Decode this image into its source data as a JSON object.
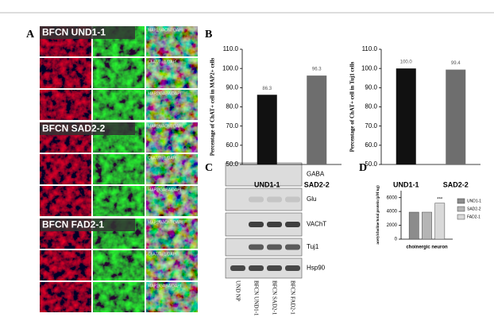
{
  "panel_a": {
    "label": "A",
    "groups": [
      {
        "title": "BFCN UND1-1",
        "stains": [
          "MAP2/VAChT/DAPI",
          "ChAT/Tuj1/DAPI",
          "MAP2/GABA/DAPI"
        ]
      },
      {
        "title": "BFCN SAD2-2",
        "stains": [
          "MAP2/VAChT/DAPI",
          "ChAT/Tuj1/DAPI",
          "MAP2/GABA/DAPI"
        ]
      },
      {
        "title": "BFCN FAD2-1",
        "stains": [
          "MAP2/VAChT/DAPI",
          "ChAT/Tuj1/DAPI",
          "MAP2/GABA/DAPI"
        ]
      }
    ]
  },
  "panel_b": {
    "label": "B"
  },
  "panel_c": {
    "label": "C",
    "bands": [
      "GABA",
      "Glu",
      "VAChT",
      "Tuj1",
      "Hsp90"
    ],
    "lanes": [
      "UND NP",
      "BFCN UND1-1",
      "BFCN SAD2-1",
      "BFCN FAD2-1"
    ]
  },
  "panel_d": {
    "label": "D"
  },
  "chart_data": [
    {
      "type": "bar",
      "y_label": "Percentage of ChAT+ cell in MAP2+ cells",
      "categories": [
        "UND1-1",
        "SAD2-2"
      ],
      "values": [
        86.3,
        96.3
      ],
      "value_labels": [
        "86.3",
        "96.3"
      ],
      "colors": [
        "#111111",
        "#6e6e6e"
      ],
      "ylim": [
        50,
        110
      ],
      "yticks": [
        {
          "value": 50,
          "label": "50.0"
        },
        {
          "value": 60,
          "label": "60.0"
        },
        {
          "value": 70,
          "label": "70.0"
        },
        {
          "value": 80,
          "label": "80.0"
        },
        {
          "value": 90,
          "label": "90.0"
        },
        {
          "value": 100,
          "label": "100.0"
        },
        {
          "value": 110,
          "label": "110.0"
        }
      ]
    },
    {
      "type": "bar",
      "y_label": "Percentage of ChAT+ cell in Tuj1 cells",
      "categories": [
        "UND1-1",
        "SAD2-2"
      ],
      "values": [
        100.0,
        99.4
      ],
      "value_labels": [
        "100.0",
        "99.4"
      ],
      "colors": [
        "#111111",
        "#6e6e6e"
      ],
      "ylim": [
        50,
        110
      ],
      "yticks": [
        {
          "value": 50,
          "label": "50.0"
        },
        {
          "value": 60,
          "label": "60.0"
        },
        {
          "value": 70,
          "label": "70.0"
        },
        {
          "value": 80,
          "label": "80.0"
        },
        {
          "value": 90,
          "label": "90.0"
        },
        {
          "value": 100,
          "label": "100.0"
        },
        {
          "value": 110,
          "label": "110.0"
        }
      ]
    },
    {
      "type": "grouped",
      "y_label": "acetylcholine/total protein (pM/ug)",
      "x_label": "choinergic neuron",
      "annotation": "***",
      "series": [
        {
          "name": "UND1-1",
          "color": "#8c8c8c",
          "values": [
            3900
          ]
        },
        {
          "name": "SAD2-2",
          "color": "#b5b5b5",
          "values": [
            3900
          ]
        },
        {
          "name": "FAD2-1",
          "color": "#d9d9d9",
          "values": [
            5200
          ]
        }
      ],
      "ylim": [
        0,
        7000
      ],
      "yticks": [
        0,
        2000,
        4000,
        6000
      ]
    }
  ]
}
